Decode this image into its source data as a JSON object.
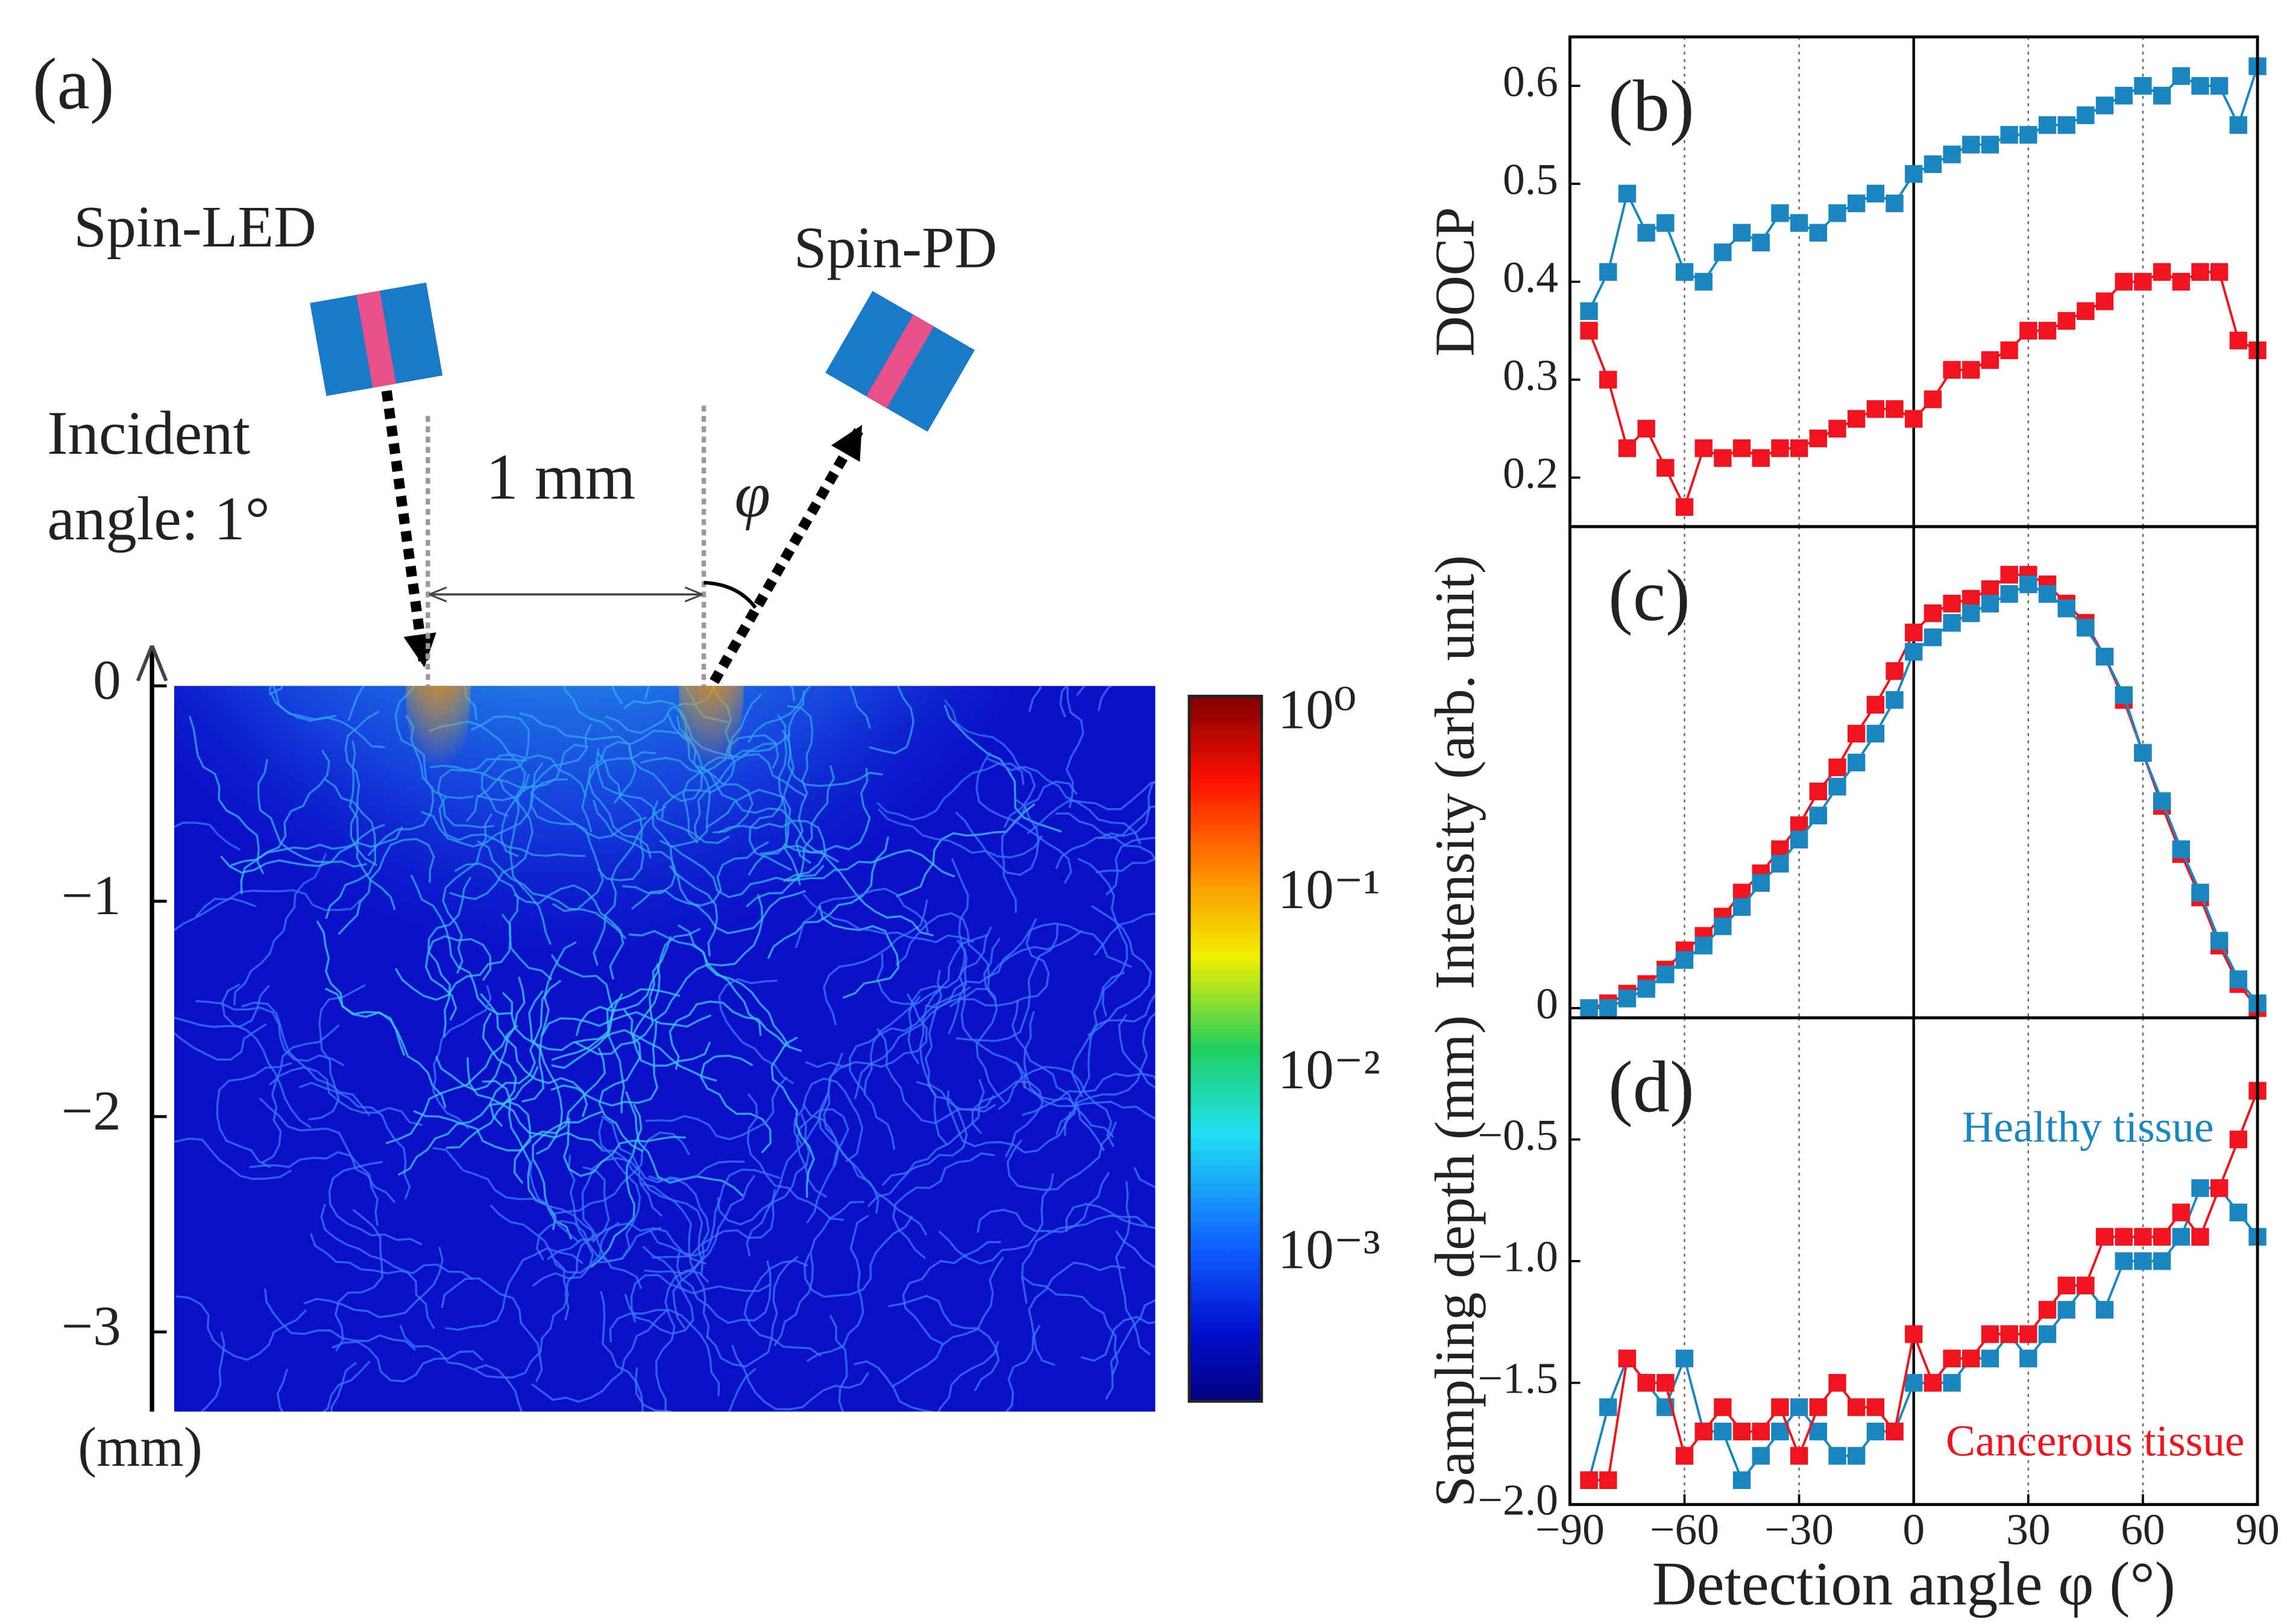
{
  "diagram": {
    "panel_label": "(a)",
    "source_label": "Spin-LED",
    "detector_label": "Spin-PD",
    "incident_label": [
      "Incident",
      "angle:  1°"
    ],
    "distance_label": "1 mm",
    "angle_symbol": "φ",
    "depth_ticks": [
      0,
      {
        "value": -1,
        "label": "−1"
      },
      {
        "value": -2,
        "label": "−2"
      },
      {
        "value": -3,
        "label": "−3"
      }
    ],
    "depth_unit": "(mm)",
    "colorbar_labels": [
      "10⁰",
      "10⁻¹",
      "10⁻²",
      "10⁻³"
    ]
  },
  "chart_data": [
    {
      "type": "line",
      "panel_label": "(b)",
      "y_label": "DOCP",
      "x": [
        -85,
        -80,
        -75,
        -70,
        -65,
        -60,
        -55,
        -50,
        -45,
        -40,
        -35,
        -30,
        -25,
        -20,
        -15,
        -10,
        -5,
        0,
        5,
        10,
        15,
        20,
        25,
        30,
        35,
        40,
        45,
        50,
        55,
        60,
        65,
        70,
        75,
        80,
        85,
        90
      ],
      "xlim": [
        -90,
        90
      ],
      "xticks": [
        -60,
        -30,
        0,
        30,
        60
      ],
      "ylim": [
        0.15,
        0.65
      ],
      "yticks": [
        0.2,
        0.3,
        0.4,
        0.5,
        0.6
      ],
      "grid": true,
      "series": [
        {
          "color": "#1a86c0",
          "values": [
            0.37,
            0.41,
            0.49,
            0.45,
            0.46,
            0.41,
            0.4,
            0.43,
            0.45,
            0.44,
            0.47,
            0.46,
            0.45,
            0.47,
            0.48,
            0.49,
            0.48,
            0.51,
            0.52,
            0.53,
            0.54,
            0.54,
            0.55,
            0.55,
            0.56,
            0.56,
            0.57,
            0.58,
            0.59,
            0.6,
            0.59,
            0.61,
            0.6,
            0.6,
            0.56,
            0.62
          ]
        },
        {
          "color": "#f0141e",
          "values": [
            0.35,
            0.3,
            0.23,
            0.25,
            0.21,
            0.17,
            0.23,
            0.22,
            0.23,
            0.22,
            0.23,
            0.23,
            0.24,
            0.25,
            0.26,
            0.27,
            0.27,
            0.26,
            0.28,
            0.31,
            0.31,
            0.32,
            0.33,
            0.35,
            0.35,
            0.36,
            0.37,
            0.38,
            0.4,
            0.4,
            0.41,
            0.4,
            0.41,
            0.41,
            0.34,
            0.33
          ]
        }
      ]
    },
    {
      "type": "line",
      "panel_label": "(c)",
      "y_label": "Intensity (arb. unit)",
      "x": [
        -85,
        -80,
        -75,
        -70,
        -65,
        -60,
        -55,
        -50,
        -45,
        -40,
        -35,
        -30,
        -25,
        -20,
        -15,
        -10,
        -5,
        0,
        5,
        10,
        15,
        20,
        25,
        30,
        35,
        40,
        45,
        50,
        55,
        60,
        65,
        70,
        75,
        80,
        85,
        90
      ],
      "xlim": [
        -90,
        90
      ],
      "xticks": [
        -60,
        -30,
        0,
        30,
        60
      ],
      "ylim": [
        -0.02,
        1
      ],
      "yticks": [
        0
      ],
      "grid": true,
      "series": [
        {
          "color": "#f0141e",
          "values": [
            0,
            0.01,
            0.03,
            0.05,
            0.08,
            0.12,
            0.15,
            0.19,
            0.24,
            0.28,
            0.33,
            0.38,
            0.45,
            0.5,
            0.57,
            0.63,
            0.7,
            0.78,
            0.82,
            0.84,
            0.85,
            0.87,
            0.9,
            0.9,
            0.88,
            0.84,
            0.8,
            0.73,
            0.64,
            0.53,
            0.42,
            0.32,
            0.23,
            0.13,
            0.05,
            0
          ]
        },
        {
          "color": "#1a86c0",
          "values": [
            0,
            0,
            0.02,
            0.04,
            0.07,
            0.1,
            0.13,
            0.17,
            0.21,
            0.26,
            0.3,
            0.35,
            0.4,
            0.46,
            0.51,
            0.57,
            0.64,
            0.74,
            0.77,
            0.8,
            0.82,
            0.84,
            0.86,
            0.88,
            0.86,
            0.83,
            0.79,
            0.73,
            0.65,
            0.53,
            0.43,
            0.33,
            0.24,
            0.14,
            0.06,
            0.01
          ]
        }
      ]
    },
    {
      "type": "line",
      "panel_label": "(d)",
      "y_label": "Sampling depth (mm)",
      "x_label": "Detection angle φ (°)",
      "x": [
        -85,
        -80,
        -75,
        -70,
        -65,
        -60,
        -55,
        -50,
        -45,
        -40,
        -35,
        -30,
        -25,
        -20,
        -15,
        -10,
        -5,
        0,
        5,
        10,
        15,
        20,
        25,
        30,
        35,
        40,
        45,
        50,
        55,
        60,
        65,
        70,
        75,
        80,
        85,
        90
      ],
      "xlim": [
        -90,
        90
      ],
      "xticks": [
        {
          "value": -90,
          "label": "−90"
        },
        {
          "value": -60,
          "label": "−60"
        },
        {
          "value": -30,
          "label": "−30"
        },
        0,
        30,
        60,
        90
      ],
      "ylim": [
        -2,
        0
      ],
      "yticks": [
        {
          "value": -2,
          "label": "−2.0"
        },
        {
          "value": -1.5,
          "label": "−1.5"
        },
        {
          "value": -1,
          "label": "−1.0"
        },
        {
          "value": -0.5,
          "label": "−0.5"
        }
      ],
      "grid": true,
      "series": [
        {
          "name": "Healthy tissue",
          "color": "#1a86c0",
          "values": [
            -1.9,
            -1.6,
            -1.4,
            -1.5,
            -1.6,
            -1.4,
            -1.7,
            -1.7,
            -1.9,
            -1.8,
            -1.7,
            -1.6,
            -1.7,
            -1.8,
            -1.8,
            -1.7,
            -1.7,
            -1.5,
            -1.5,
            -1.5,
            -1.4,
            -1.4,
            -1.3,
            -1.4,
            -1.3,
            -1.2,
            -1.1,
            -1.2,
            -1.0,
            -1.0,
            -1.0,
            -0.9,
            -0.7,
            -0.7,
            -0.8,
            -0.9
          ]
        },
        {
          "name": "Cancerous tissue",
          "color": "#f0141e",
          "values": [
            -1.9,
            -1.9,
            -1.4,
            -1.5,
            -1.5,
            -1.8,
            -1.7,
            -1.6,
            -1.7,
            -1.7,
            -1.6,
            -1.8,
            -1.6,
            -1.5,
            -1.6,
            -1.6,
            -1.7,
            -1.3,
            -1.5,
            -1.4,
            -1.4,
            -1.3,
            -1.3,
            -1.3,
            -1.2,
            -1.1,
            -1.1,
            -0.9,
            -0.9,
            -0.9,
            -0.9,
            -0.8,
            -0.9,
            -0.7,
            -0.5,
            -0.3
          ]
        }
      ]
    }
  ]
}
